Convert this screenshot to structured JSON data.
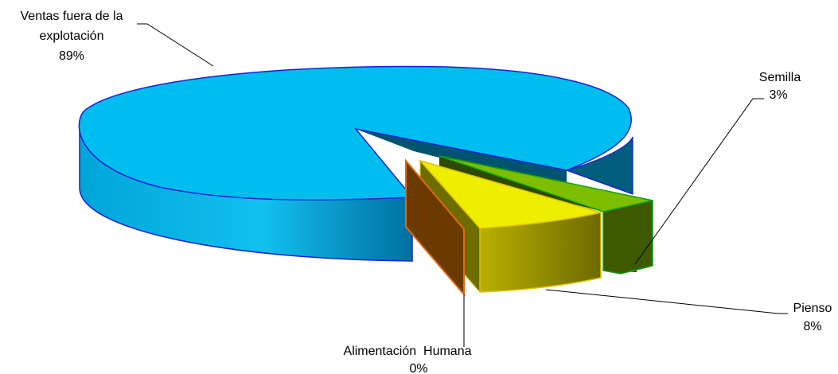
{
  "chart_data": {
    "type": "pie",
    "title": "",
    "slices": [
      {
        "name": "Ventas fuera de la explotación",
        "value": 89,
        "label": "89%",
        "name_lines": [
          "Ventas fuera de la",
          "explotación"
        ],
        "color": "#00BDEF"
      },
      {
        "name": "Semilla",
        "value": 3,
        "label": "3%",
        "name_lines": [
          "Semilla"
        ],
        "color": "#7DBE00"
      },
      {
        "name": "Pienso",
        "value": 8,
        "label": "8%",
        "name_lines": [
          "Pienso"
        ],
        "color": "#EEEE00"
      },
      {
        "name": "Alimentación Humana",
        "value": 0,
        "label": "0%",
        "name_lines": [
          "Alimentación  Humana"
        ],
        "color": "#E06A10"
      }
    ]
  }
}
